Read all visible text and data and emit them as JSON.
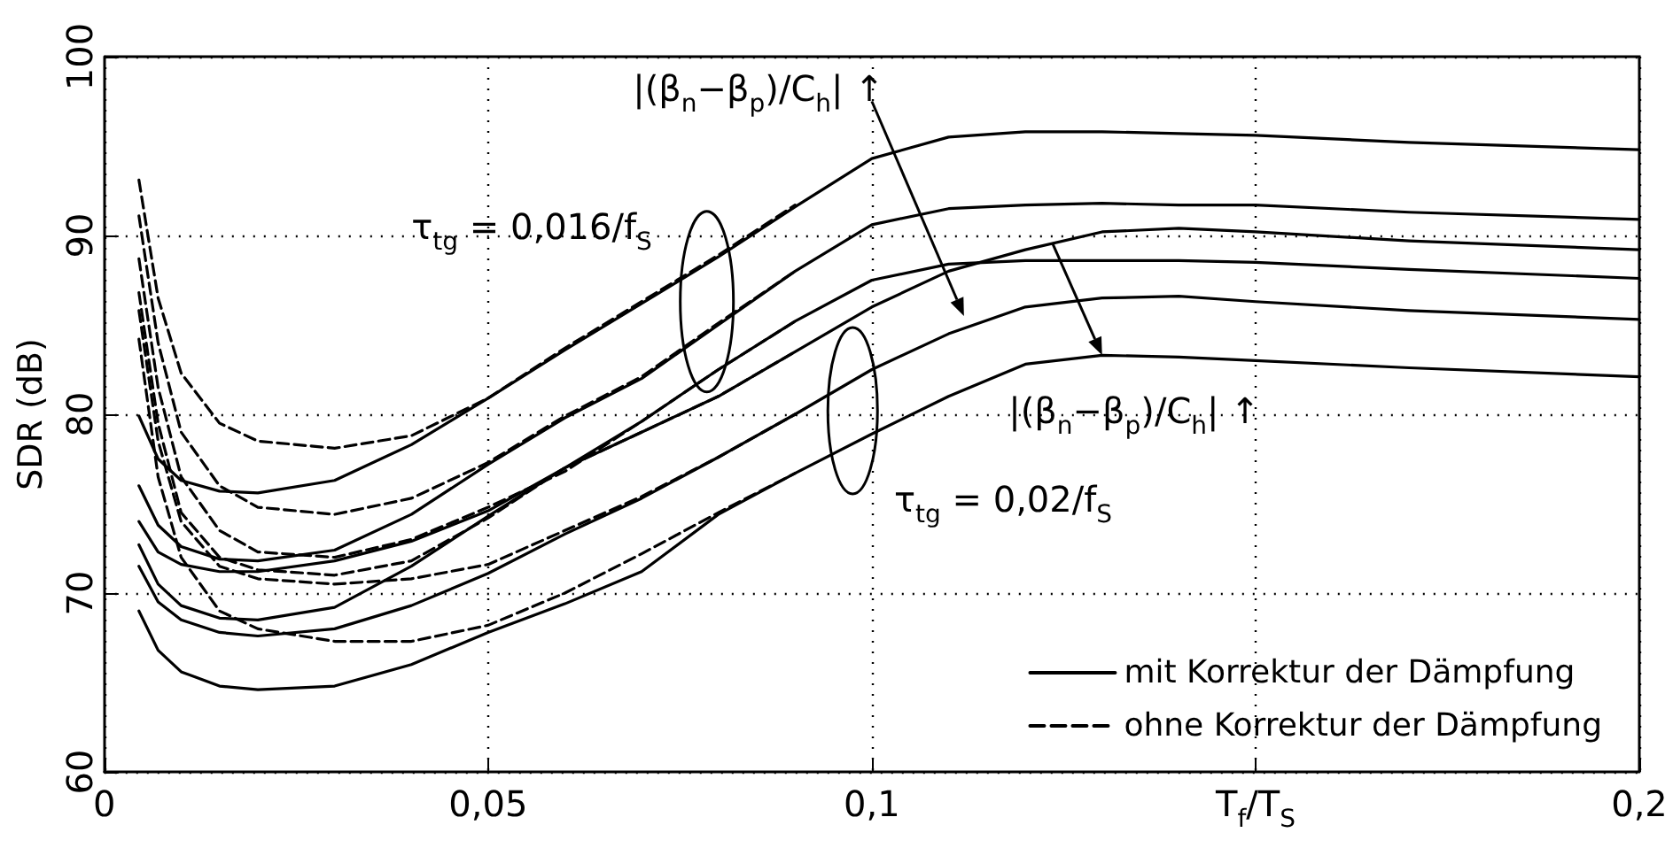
{
  "chart_data": {
    "type": "line",
    "xlabel": "T$_{f}$/T$_{S}$",
    "ylabel": "SDR (dB)",
    "xlim": [
      0,
      0.2
    ],
    "xticks": [
      0,
      {
        "value": 0.05,
        "label": "0,05"
      },
      {
        "value": 0.1,
        "label": "0,1"
      },
      {
        "value": 0.15,
        "label": null
      },
      {
        "value": 0.2,
        "label": "0,2"
      }
    ],
    "ylim": [
      60,
      100
    ],
    "yticks": [
      60,
      70,
      80,
      90,
      100
    ],
    "grid": true,
    "legend": "bottom right",
    "marker": "none",
    "annotations": [
      "τ$_{tg}$ = 0,016/f$_{S}$",
      "|(β$_{n}$−β$_{p}$)/C$_{h}$| ↑",
      {
        "text": "|(β$_{n}$−β$_{p}$)/C$_{h}$| ↑",
        "x": 0.13,
        "y": 83.3
      },
      "τ$_{tg}$ = 0,02/f$_{S}$"
    ],
    "series": [
      {
        "name": "mit Korrektur der Dämpfung",
        "color": "#000000",
        "line_style": "solid",
        "x": [
          0.0045,
          0.007,
          0.01,
          0.015,
          0.02,
          0.03,
          0.04,
          0.05,
          0.06,
          0.07,
          0.08,
          0.09,
          0.1,
          0.11,
          0.12,
          0.13,
          0.14,
          0.15,
          0.17,
          0.2
        ],
        "values": [
          79.9,
          77.5,
          76.3,
          75.7,
          75.6,
          76.3,
          78.3,
          80.9,
          83.6,
          86.2,
          88.8,
          91.6,
          94.3,
          95.5,
          95.8,
          95.8,
          95.7,
          95.6,
          95.2,
          94.8
        ]
      },
      {
        "color": "#000000",
        "line_style": "solid",
        "x": [
          0.0045,
          0.007,
          0.01,
          0.015,
          0.02,
          0.03,
          0.04,
          0.05,
          0.06,
          0.07,
          0.08,
          0.09,
          0.1,
          0.11,
          0.12,
          0.13,
          0.14,
          0.15,
          0.17,
          0.2
        ],
        "values": [
          76.0,
          73.8,
          72.6,
          71.9,
          71.8,
          72.4,
          74.4,
          77.2,
          79.8,
          82.0,
          85.0,
          88.0,
          90.6,
          91.5,
          91.7,
          91.8,
          91.7,
          91.7,
          91.3,
          90.9
        ]
      },
      {
        "color": "#000000",
        "line_style": "solid",
        "x": [
          0.0045,
          0.007,
          0.01,
          0.015,
          0.02,
          0.03,
          0.04,
          0.05,
          0.06,
          0.07,
          0.08,
          0.09,
          0.1,
          0.11,
          0.12,
          0.13,
          0.14,
          0.15,
          0.17,
          0.2
        ],
        "values": [
          74.0,
          72.3,
          71.6,
          71.2,
          71.2,
          71.8,
          72.9,
          74.6,
          77.0,
          79.6,
          82.5,
          85.2,
          87.5,
          88.4,
          88.6,
          88.6,
          88.6,
          88.5,
          88.1,
          87.6
        ]
      },
      {
        "color": "#000000",
        "line_style": "solid",
        "x": [
          0.0045,
          0.007,
          0.01,
          0.015,
          0.02,
          0.03,
          0.04,
          0.05,
          0.06,
          0.07,
          0.08,
          0.09,
          0.1,
          0.11,
          0.12,
          0.13,
          0.14,
          0.15,
          0.17,
          0.2
        ],
        "values": [
          72.7,
          70.5,
          69.3,
          68.6,
          68.5,
          69.2,
          71.5,
          74.3,
          77.0,
          79.0,
          81.0,
          83.5,
          86.0,
          88.0,
          89.2,
          90.2,
          90.4,
          90.2,
          89.7,
          89.2
        ]
      },
      {
        "color": "#000000",
        "line_style": "solid",
        "x": [
          0.0045,
          0.007,
          0.01,
          0.015,
          0.02,
          0.03,
          0.04,
          0.05,
          0.06,
          0.07,
          0.08,
          0.09,
          0.1,
          0.11,
          0.12,
          0.13,
          0.14,
          0.15,
          0.17,
          0.2
        ],
        "values": [
          71.5,
          69.5,
          68.5,
          67.8,
          67.6,
          68.0,
          69.3,
          71.1,
          73.3,
          75.3,
          77.6,
          80.0,
          82.5,
          84.5,
          86.0,
          86.5,
          86.6,
          86.3,
          85.8,
          85.3
        ]
      },
      {
        "color": "#000000",
        "line_style": "solid",
        "x": [
          0.0045,
          0.007,
          0.01,
          0.015,
          0.02,
          0.03,
          0.04,
          0.05,
          0.06,
          0.07,
          0.08,
          0.09,
          0.1,
          0.11,
          0.12,
          0.13,
          0.14,
          0.15,
          0.17,
          0.2
        ],
        "values": [
          69.0,
          66.8,
          65.6,
          64.8,
          64.6,
          64.8,
          66.0,
          67.8,
          69.4,
          71.2,
          74.4,
          76.7,
          78.9,
          81.0,
          82.8,
          83.3,
          83.2,
          83.0,
          82.6,
          82.1
        ]
      },
      {
        "name": "ohne Korrektur der Dämpfung",
        "color": "#000000",
        "line_style": "dashed",
        "x": [
          0.0045,
          0.007,
          0.01,
          0.015,
          0.02,
          0.03,
          0.04,
          0.05,
          0.06,
          0.07,
          0.08,
          0.09
        ],
        "values": [
          93.1,
          86.5,
          82.3,
          79.5,
          78.5,
          78.1,
          78.8,
          80.9,
          83.7,
          86.3,
          88.9,
          91.7
        ]
      },
      {
        "color": "#000000",
        "line_style": "dashed",
        "x": [
          0.0045,
          0.007,
          0.01,
          0.015,
          0.02,
          0.03,
          0.04,
          0.05,
          0.06,
          0.07,
          0.08,
          0.09
        ],
        "values": [
          91.1,
          84.0,
          79.0,
          76.0,
          74.8,
          74.4,
          75.3,
          77.3,
          79.9,
          82.1,
          85.1,
          88.0
        ]
      },
      {
        "color": "#000000",
        "line_style": "dashed",
        "x": [
          0.0045,
          0.007,
          0.01,
          0.015,
          0.02,
          0.03,
          0.04,
          0.05,
          0.06,
          0.07,
          0.08,
          0.09
        ],
        "values": [
          88.7,
          81.5,
          76.5,
          73.5,
          72.3,
          72.0,
          73.0,
          74.8,
          76.8,
          79.6,
          82.5,
          85.2
        ]
      },
      {
        "color": "#000000",
        "line_style": "dashed",
        "x": [
          0.0045,
          0.007,
          0.01,
          0.015,
          0.02,
          0.03,
          0.04,
          0.05,
          0.06,
          0.07,
          0.08,
          0.09
        ],
        "values": [
          86.8,
          79.5,
          74.5,
          72.0,
          71.3,
          71.0,
          71.8,
          74.2,
          77.0,
          79.0,
          81.0,
          83.5
        ]
      },
      {
        "color": "#000000",
        "line_style": "dashed",
        "x": [
          0.0045,
          0.007,
          0.01,
          0.015,
          0.02,
          0.03,
          0.04,
          0.05,
          0.06,
          0.07,
          0.08,
          0.09
        ],
        "values": [
          85.8,
          78.5,
          74.0,
          71.5,
          70.8,
          70.5,
          70.8,
          71.6,
          73.5,
          75.4,
          77.6,
          80.0
        ]
      },
      {
        "color": "#000000",
        "line_style": "dashed",
        "x": [
          0.0045,
          0.007,
          0.01,
          0.015,
          0.02,
          0.03,
          0.04,
          0.05,
          0.06,
          0.07,
          0.08,
          0.09
        ],
        "values": [
          84.2,
          76.5,
          72.0,
          69.0,
          68.0,
          67.3,
          67.3,
          68.2,
          70.0,
          72.2,
          74.5,
          76.7
        ]
      }
    ]
  }
}
